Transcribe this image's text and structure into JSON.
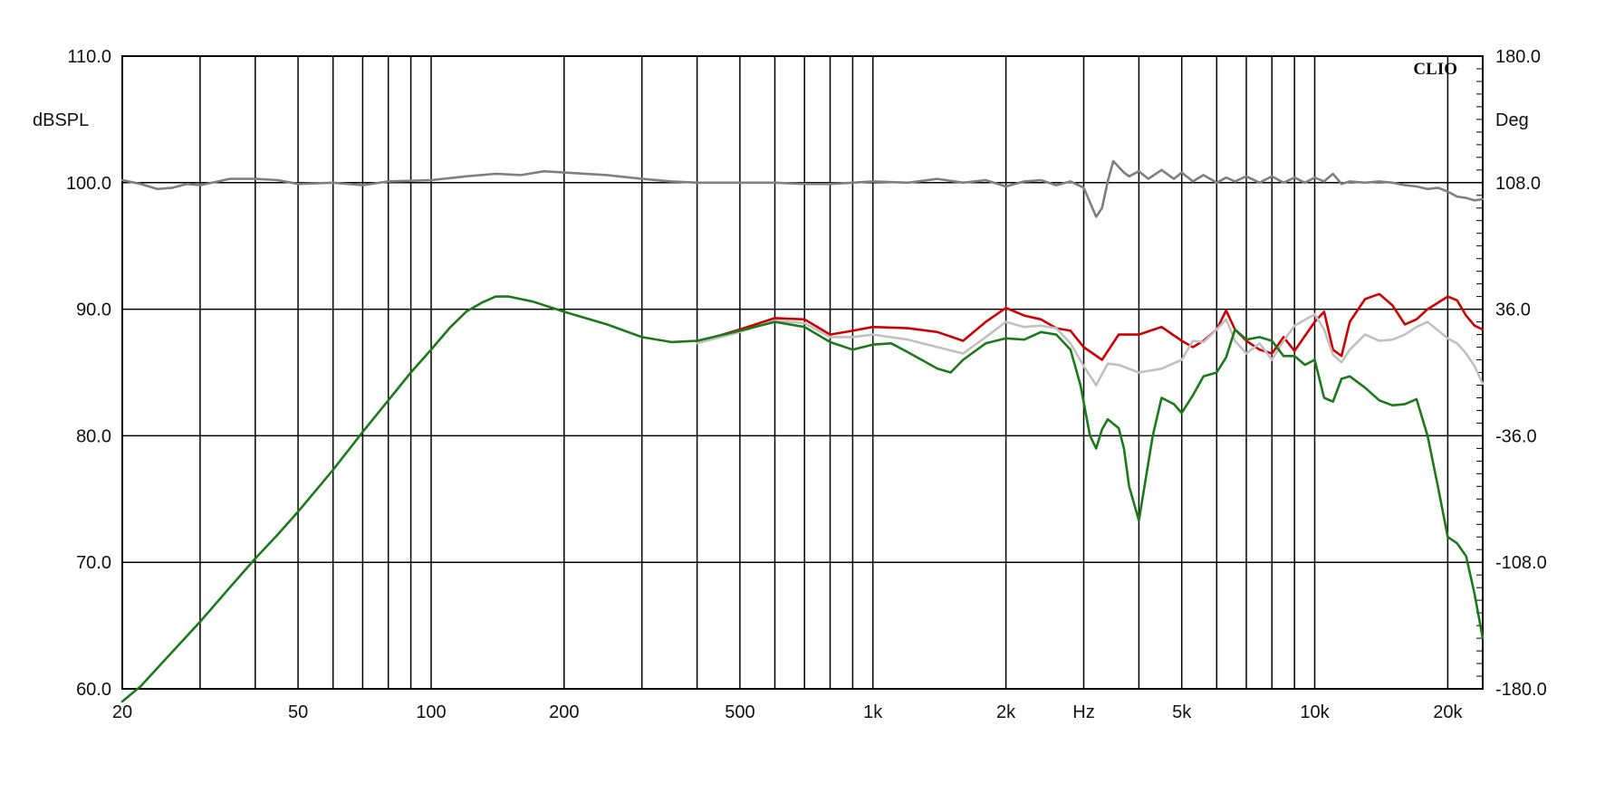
{
  "chart_data": {
    "type": "line",
    "brand": "CLIO",
    "x_scale": "log",
    "xlim": [
      20,
      24000
    ],
    "x_ticks": [
      {
        "value": 20,
        "label": "20"
      },
      {
        "value": 50,
        "label": "50"
      },
      {
        "value": 100,
        "label": "100"
      },
      {
        "value": 200,
        "label": "200"
      },
      {
        "value": 500,
        "label": "500"
      },
      {
        "value": 1000,
        "label": "1k"
      },
      {
        "value": 2000,
        "label": "2k"
      },
      {
        "value": 3000,
        "label": "Hz"
      },
      {
        "value": 5000,
        "label": "5k"
      },
      {
        "value": 10000,
        "label": "10k"
      },
      {
        "value": 20000,
        "label": "20k"
      }
    ],
    "x_gridlines": [
      30,
      40,
      50,
      60,
      70,
      80,
      90,
      100,
      200,
      300,
      400,
      500,
      600,
      700,
      800,
      900,
      1000,
      2000,
      3000,
      4000,
      5000,
      6000,
      7000,
      8000,
      9000,
      10000,
      20000
    ],
    "ylabel": "dBSPL",
    "ylim": [
      60,
      110
    ],
    "y_ticks": [
      "60.0",
      "70.0",
      "80.0",
      "90.0",
      "100.0",
      "110.0"
    ],
    "y2label": "Deg",
    "y2lim": [
      -180,
      180
    ],
    "y2_ticks": [
      "-180.0",
      "-108.0",
      "-36.0",
      "36.0",
      "108.0",
      "180.0"
    ],
    "grid": true,
    "series": [
      {
        "color": "#7f7f7f",
        "x": [
          20,
          22,
          24,
          26,
          28,
          30,
          35,
          40,
          45,
          50,
          60,
          70,
          80,
          100,
          120,
          140,
          160,
          180,
          200,
          250,
          300,
          350,
          400,
          500,
          600,
          700,
          800,
          900,
          1000,
          1200,
          1400,
          1600,
          1800,
          2000,
          2200,
          2400,
          2600,
          2800,
          3000,
          3200,
          3300,
          3400,
          3500,
          3700,
          3800,
          4000,
          4200,
          4500,
          4800,
          5000,
          5300,
          5600,
          6000,
          6300,
          6600,
          7000,
          7500,
          8000,
          8500,
          9000,
          9500,
          10000,
          10500,
          11000,
          11500,
          12000,
          13000,
          14000,
          15000,
          16000,
          17000,
          18000,
          19000,
          20000,
          21000,
          22000,
          23000,
          24000
        ],
        "y": [
          100.2,
          99.9,
          99.5,
          99.6,
          99.9,
          99.8,
          100.3,
          100.3,
          100.2,
          99.9,
          100.0,
          99.8,
          100.1,
          100.2,
          100.5,
          100.7,
          100.6,
          100.9,
          100.8,
          100.6,
          100.3,
          100.1,
          100.0,
          100.0,
          100.0,
          99.9,
          99.9,
          100.0,
          100.1,
          100.0,
          100.3,
          100.0,
          100.2,
          99.7,
          100.1,
          100.2,
          99.8,
          100.1,
          99.6,
          97.3,
          98.0,
          100.1,
          101.7,
          100.8,
          100.5,
          100.9,
          100.3,
          101.0,
          100.3,
          100.8,
          100.1,
          100.6,
          100.0,
          100.4,
          100.1,
          100.5,
          100.0,
          100.5,
          100.0,
          100.4,
          100.0,
          100.4,
          100.1,
          100.7,
          99.9,
          100.1,
          100.0,
          100.1,
          100.0,
          99.8,
          99.7,
          99.5,
          99.6,
          99.3,
          98.9,
          98.8,
          98.6,
          98.7
        ]
      },
      {
        "color": "#d00000",
        "x": [
          400,
          500,
          600,
          700,
          800,
          900,
          1000,
          1200,
          1400,
          1600,
          1800,
          2000,
          2200,
          2400,
          2600,
          2800,
          3000,
          3300,
          3600,
          4000,
          4500,
          5000,
          5300,
          5600,
          6000,
          6300,
          6600,
          7000,
          7500,
          8000,
          8500,
          9000,
          10000,
          10500,
          11000,
          11500,
          12000,
          13000,
          14000,
          15000,
          16000,
          17000,
          18000,
          20000,
          21000,
          22000,
          23000,
          24000
        ],
        "y": [
          87.4,
          88.4,
          89.3,
          89.2,
          88.0,
          88.3,
          88.6,
          88.5,
          88.2,
          87.5,
          89.0,
          90.1,
          89.5,
          89.2,
          88.5,
          88.3,
          87.0,
          86.0,
          88.0,
          88.0,
          88.6,
          87.5,
          87.0,
          87.5,
          88.4,
          89.9,
          88.4,
          87.5,
          86.8,
          86.5,
          87.8,
          86.7,
          89.0,
          89.8,
          86.8,
          86.3,
          89.0,
          90.8,
          91.2,
          90.3,
          88.8,
          89.2,
          90.0,
          91.0,
          90.7,
          89.5,
          88.7,
          88.4
        ]
      },
      {
        "color": "#c0c0c0",
        "x": [
          400,
          500,
          600,
          700,
          800,
          900,
          1000,
          1200,
          1400,
          1600,
          1800,
          2000,
          2200,
          2400,
          2600,
          2800,
          3000,
          3200,
          3400,
          3600,
          4000,
          4500,
          5000,
          5300,
          5600,
          6000,
          6300,
          6600,
          7000,
          7500,
          8000,
          8500,
          9000,
          10000,
          10500,
          11000,
          11500,
          12000,
          13000,
          14000,
          15000,
          16000,
          17000,
          18000,
          20000,
          21000,
          22000,
          23000,
          24000
        ],
        "y": [
          87.3,
          88.2,
          89.1,
          88.9,
          87.8,
          87.8,
          88.0,
          87.6,
          87.0,
          86.5,
          87.8,
          89.0,
          88.6,
          88.7,
          88.5,
          87.3,
          85.5,
          84.0,
          85.7,
          85.6,
          85.0,
          85.3,
          86.0,
          87.5,
          87.4,
          88.4,
          89.2,
          87.5,
          86.5,
          87.3,
          86.0,
          87.5,
          88.7,
          89.6,
          88.4,
          86.4,
          85.8,
          86.8,
          88.0,
          87.5,
          87.6,
          88.0,
          88.6,
          89.0,
          87.7,
          87.3,
          86.5,
          85.5,
          84.1
        ]
      },
      {
        "color": "#1a7a1a",
        "x": [
          20,
          22,
          25,
          30,
          35,
          40,
          45,
          50,
          60,
          70,
          80,
          90,
          100,
          110,
          120,
          130,
          140,
          150,
          170,
          200,
          250,
          300,
          350,
          400,
          500,
          600,
          700,
          800,
          900,
          1000,
          1100,
          1200,
          1400,
          1500,
          1600,
          1800,
          2000,
          2200,
          2400,
          2600,
          2800,
          2950,
          3100,
          3200,
          3300,
          3400,
          3600,
          3700,
          3800,
          4000,
          4300,
          4500,
          4800,
          5000,
          5300,
          5600,
          6000,
          6300,
          6600,
          7000,
          7500,
          8000,
          8500,
          9000,
          9500,
          10000,
          10500,
          11000,
          11500,
          12000,
          13000,
          14000,
          15000,
          16000,
          17000,
          18000,
          19000,
          20000,
          21000,
          22000,
          23000,
          24000
        ],
        "y": [
          59.0,
          60.2,
          62.3,
          65.3,
          68.0,
          70.3,
          72.2,
          74.0,
          77.3,
          80.3,
          82.8,
          85.0,
          86.8,
          88.5,
          89.8,
          90.5,
          91.0,
          91.0,
          90.6,
          89.8,
          88.8,
          87.8,
          87.4,
          87.5,
          88.3,
          89.0,
          88.6,
          87.4,
          86.8,
          87.2,
          87.3,
          86.6,
          85.3,
          85.0,
          86.0,
          87.3,
          87.7,
          87.6,
          88.2,
          88.0,
          86.8,
          84.0,
          80.0,
          79.0,
          80.5,
          81.3,
          80.6,
          79.0,
          76.0,
          73.3,
          80.0,
          83.0,
          82.5,
          81.8,
          83.2,
          84.7,
          85.0,
          86.2,
          88.4,
          87.6,
          87.8,
          87.5,
          86.3,
          86.3,
          85.6,
          86.0,
          83.0,
          82.7,
          84.5,
          84.7,
          83.8,
          82.8,
          82.4,
          82.5,
          82.9,
          80.0,
          76.0,
          72.0,
          71.5,
          70.5,
          67.5,
          64.0
        ]
      }
    ]
  }
}
